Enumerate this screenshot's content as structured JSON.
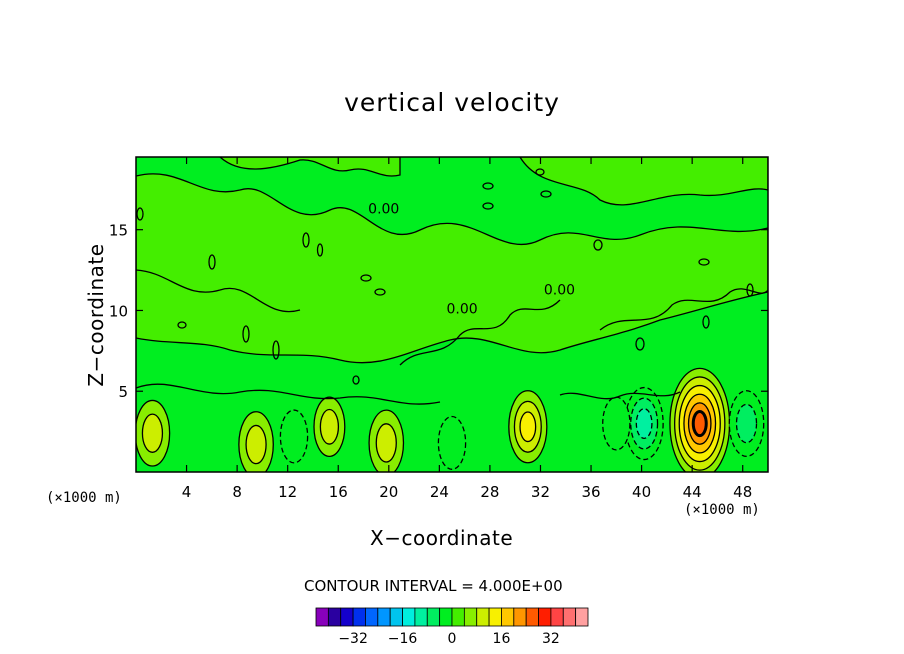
{
  "chart_data": {
    "type": "heatmap",
    "title": "vertical velocity",
    "xlabel": "X−coordinate",
    "ylabel": "Z−coordinate",
    "x_unit_left": "(×1000 m)",
    "x_unit_right": "(×1000 m)",
    "xlim": [
      0,
      50
    ],
    "ylim": [
      0,
      19.5
    ],
    "x_ticks": [
      4,
      8,
      12,
      16,
      20,
      24,
      28,
      32,
      36,
      40,
      44,
      48
    ],
    "x_tick_labels": [
      "4",
      "8",
      "12",
      "16",
      "20",
      "24",
      "28",
      "32",
      "36",
      "40",
      "44",
      "48"
    ],
    "y_ticks": [
      5,
      10,
      15
    ],
    "y_tick_labels": [
      "5",
      "10",
      "15"
    ],
    "contour_interval_text": "CONTOUR INTERVAL = 4.000E+00",
    "contour_labels": [
      {
        "text": "0.00",
        "x": 19.6,
        "z": 16.0
      },
      {
        "text": "0.00",
        "x": 33.5,
        "z": 11.0
      },
      {
        "text": "0.00",
        "x": 25.8,
        "z": 9.8
      }
    ],
    "features": [
      {
        "x": 1.3,
        "z": 2.4,
        "value": 8
      },
      {
        "x": 9.5,
        "z": 1.7,
        "value": 8
      },
      {
        "x": 15.3,
        "z": 2.8,
        "value": 6
      },
      {
        "x": 19.8,
        "z": 1.8,
        "value": 8
      },
      {
        "x": 31.0,
        "z": 2.8,
        "value": 10
      },
      {
        "x": 44.6,
        "z": 3.0,
        "value": 22
      },
      {
        "x": 40.2,
        "z": 3.0,
        "value": -10
      },
      {
        "x": 48.3,
        "z": 3.0,
        "value": -8
      },
      {
        "x": 12.5,
        "z": 2.2,
        "value": -4
      },
      {
        "x": 25.0,
        "z": 1.8,
        "value": -4
      },
      {
        "x": 38.0,
        "z": 3.0,
        "value": -4
      }
    ],
    "colorbar": {
      "colors": [
        "#8800bb",
        "#2a00a0",
        "#1400cc",
        "#0030ee",
        "#0066ff",
        "#0096ff",
        "#00c4ee",
        "#00eede",
        "#00f0a0",
        "#00ee60",
        "#00ee20",
        "#44ee00",
        "#88ee00",
        "#ccee00",
        "#f8f000",
        "#ffc800",
        "#ff9600",
        "#ff5a00",
        "#ff1e00",
        "#ff4444",
        "#ff7070",
        "#ffa0a0"
      ],
      "tick_values": [
        -32,
        -16,
        0,
        16,
        32
      ],
      "tick_labels": [
        "−32",
        "−16",
        "0",
        "16",
        "32"
      ]
    },
    "grid": false,
    "legend": "bottom-center colorbar"
  }
}
